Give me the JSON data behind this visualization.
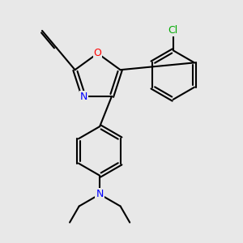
{
  "background_color": "#e8e8e8",
  "bond_color": "#000000",
  "bond_width": 1.5,
  "atom_colors": {
    "N": "#0000ff",
    "O": "#ff0000",
    "Cl": "#00aa00",
    "C": "#000000"
  },
  "font_size": 9,
  "figsize": [
    3.0,
    3.0
  ],
  "dpi": 100
}
